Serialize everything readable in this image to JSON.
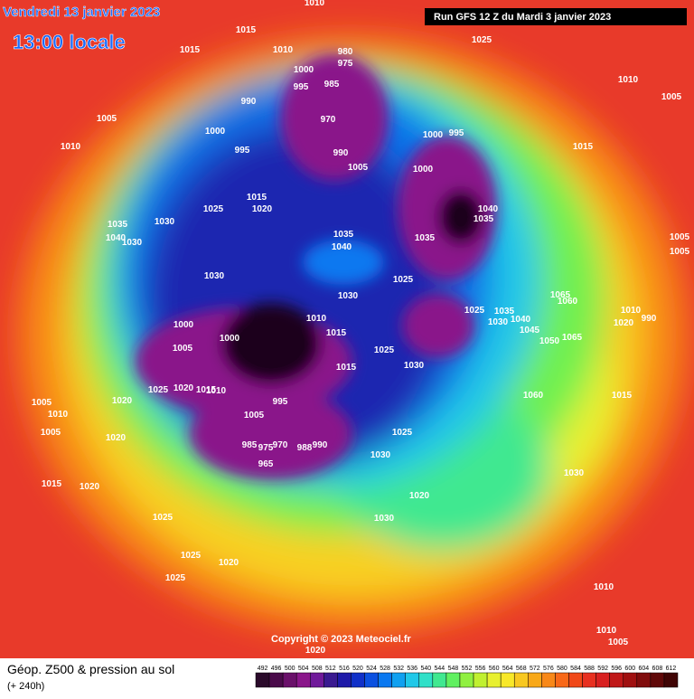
{
  "header": {
    "date": "Vendredi 13 janvier 2023",
    "time": "13:00 locale",
    "run": "Run GFS 12 Z du Mardi 3 janvier 2023"
  },
  "copyright": "Copyright © 2023 Meteociel.fr",
  "footer": {
    "title": "Géop. Z500 & pression au sol",
    "subtitle": "(+ 240h)"
  },
  "legend": {
    "values": [
      492,
      496,
      500,
      504,
      508,
      512,
      516,
      520,
      524,
      528,
      532,
      536,
      540,
      544,
      548,
      552,
      556,
      560,
      564,
      568,
      572,
      576,
      580,
      584,
      588,
      592,
      596,
      600,
      604,
      608,
      612
    ],
    "colors": [
      "#2a0a2a",
      "#4a0a4a",
      "#6a106a",
      "#8a168a",
      "#701a9a",
      "#3a1a90",
      "#1e1aa8",
      "#1030c8",
      "#0a50e0",
      "#0a78f0",
      "#10a0f0",
      "#20c8e8",
      "#30e0c8",
      "#40e890",
      "#60f060",
      "#90f040",
      "#c0f030",
      "#e8f030",
      "#f8e828",
      "#f8c820",
      "#f8a818",
      "#f88818",
      "#f86818",
      "#f04818",
      "#e83020",
      "#d82020",
      "#c01818",
      "#a01010",
      "#800c0c",
      "#600808",
      "#400404"
    ]
  },
  "pressure_labels": [
    1010,
    1015,
    1010,
    980,
    975,
    1025,
    1015,
    1000,
    985,
    995,
    1010,
    1005,
    990,
    1005,
    970,
    1000,
    1000,
    995,
    1010,
    995,
    990,
    1015,
    1005,
    1000,
    1015,
    1020,
    1025,
    1030,
    1035,
    1040,
    1030,
    1040,
    1035,
    1035,
    1035,
    1040,
    1005,
    1005,
    1030,
    1025,
    1030,
    1065,
    1060,
    1025,
    1035,
    1010,
    1010,
    1000,
    1030,
    1040,
    1020,
    990,
    1015,
    1000,
    1045,
    1065,
    1050,
    1005,
    1025,
    1030,
    1015,
    1025,
    1020,
    1015,
    1010,
    1060,
    1015,
    995,
    1020,
    1005,
    1010,
    1005,
    1005,
    1025,
    1020,
    985,
    975,
    970,
    988,
    990,
    1030,
    965,
    1030,
    1015,
    1020,
    1020,
    1030,
    1025,
    1025,
    1020,
    1025,
    1010,
    1010,
    1005,
    1020
  ]
}
